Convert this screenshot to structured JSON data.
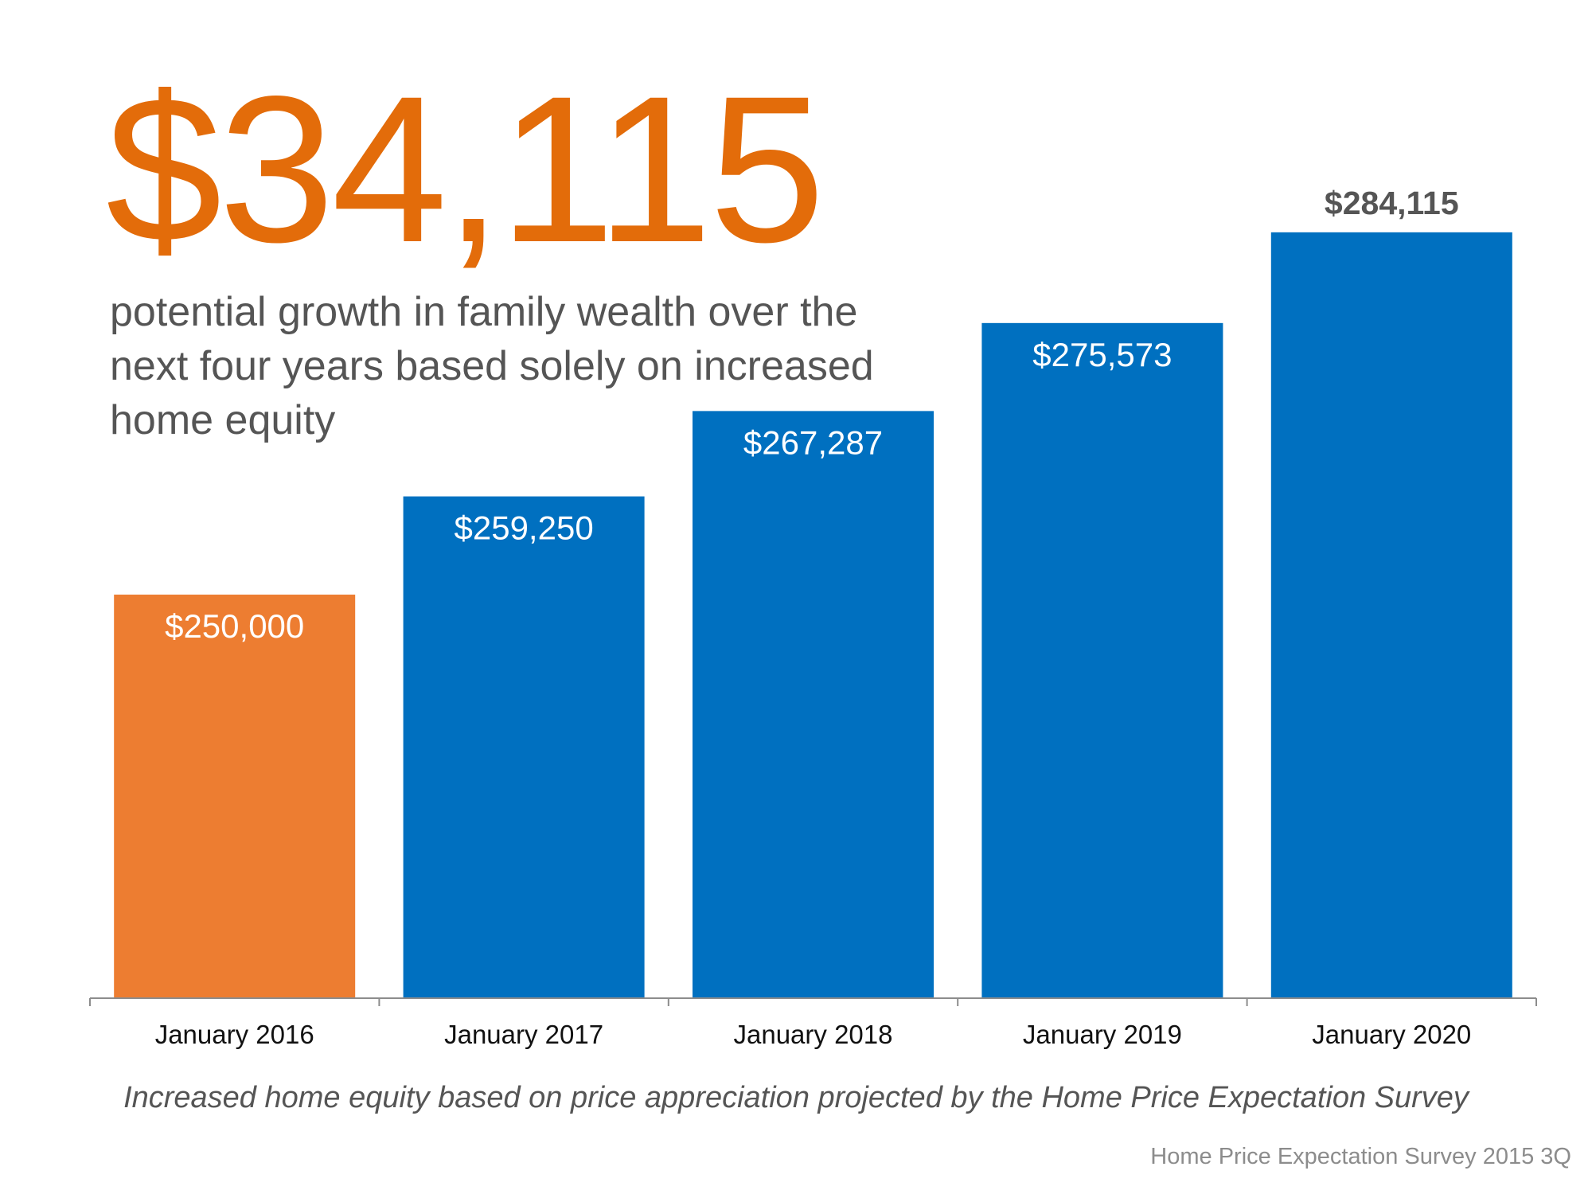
{
  "headline": "$34,115",
  "subtitle": "potential growth in family wealth over the next four years based solely on increased home equity",
  "footnote": "Increased home equity based on price appreciation projected by the Home Price Expectation Survey",
  "source": "Home Price Expectation Survey 2015 3Q",
  "colors": {
    "accent": "#e36c0a",
    "highlight_bar": "#ed7d31",
    "bar": "#0070c0",
    "text_gray": "#555555",
    "source_gray": "#8c8c8c"
  },
  "chart_data": {
    "type": "bar",
    "title": "",
    "xlabel": "",
    "ylabel": "",
    "categories": [
      "January 2016",
      "January 2017",
      "January 2018",
      "January 2019",
      "January 2020"
    ],
    "values": [
      250000,
      259250,
      267287,
      275573,
      284115
    ],
    "value_labels": [
      "$250,000",
      "$259,250",
      "$267,287",
      "$275,573",
      "$284,115"
    ],
    "bar_colors": [
      "#ed7d31",
      "#0070c0",
      "#0070c0",
      "#0070c0",
      "#0070c0"
    ],
    "ylim": [
      212000,
      291000
    ],
    "grid": false,
    "legend": "none"
  }
}
